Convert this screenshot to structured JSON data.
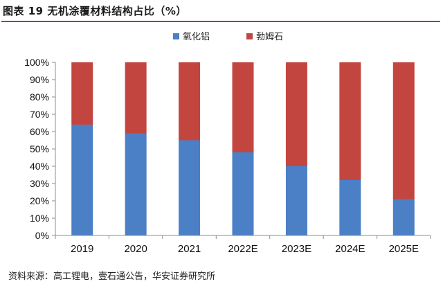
{
  "figure": {
    "title": "图表 19 无机涂覆材料结构占比（%）",
    "source": "资料来源：高工锂电，壹石通公告，华安证券研究所"
  },
  "chart_data": {
    "type": "bar",
    "stacked": true,
    "percent": true,
    "categories": [
      "2019",
      "2020",
      "2021",
      "2022E",
      "2023E",
      "2024E",
      "2025E"
    ],
    "series": [
      {
        "name": "氧化铝",
        "color": "#4b7fc6",
        "values": [
          64,
          59,
          55,
          48,
          40,
          32,
          21
        ]
      },
      {
        "name": "勃姆石",
        "color": "#c2463f",
        "values": [
          36,
          41,
          45,
          52,
          60,
          68,
          79
        ]
      }
    ],
    "ylim": [
      0,
      100
    ],
    "yticks": [
      "0%",
      "10%",
      "20%",
      "30%",
      "40%",
      "50%",
      "60%",
      "70%",
      "80%",
      "90%",
      "100%"
    ],
    "legend": "top-center",
    "grid": false
  }
}
